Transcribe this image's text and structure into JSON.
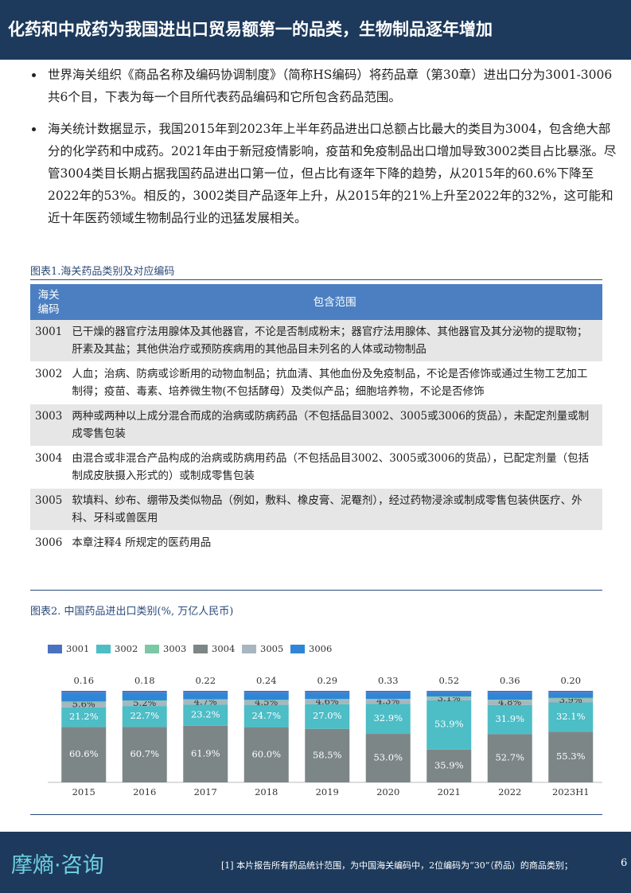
{
  "header": {
    "title": "化药和中成药为我国进出口贸易额第一的品类，生物制品逐年增加"
  },
  "bullets": [
    "世界海关组织《商品名称及编码协调制度》（简称HS编码）将药品章（第30章）进出口分为3001-3006共6个目，下表为每一个目所代表药品编码和它所包含药品范围。",
    "海关统计数据显示，我国2015年到2023年上半年药品进出口总额占比最大的类目为3004，包含绝大部分的化学药和中成药。2021年由于新冠疫情影响，疫苗和免疫制品出口增加导致3002类目占比暴涨。尽管3004类目长期占据我国药品进出口第一位，但占比有逐年下降的趋势，从2015年的60.6%下降至2022年的53%。相反的，3002类目产品逐年上升，从2015年的21%上升至2022年的32%，这可能和近十年医药领域生物制品行业的迅猛发展相关。"
  ],
  "table": {
    "caption": "图表1.海关药品类别及对应编码",
    "headers": [
      "海关编码",
      "包含范围"
    ],
    "rows": [
      [
        "3001",
        "已干燥的器官疗法用腺体及其他器官，不论是否制成粉末；器官疗法用腺体、其他器官及其分泌物的提取物；肝素及其盐；其他供治疗或预防疾病用的其他品目未列名的人体或动物制品"
      ],
      [
        "3002",
        "人血；治病、防病或诊断用的动物血制品；抗血清、其他血份及免疫制品，不论是否修饰或通过生物工艺加工制得；疫苗、毒素、培养微生物(不包括酵母）及类似产品；细胞培养物，不论是否修饰"
      ],
      [
        "3003",
        "两种或两种以上成分混合而成的治病或防病药品（不包括品目3002、3005或3006的货品），未配定剂量或制成零售包装"
      ],
      [
        "3004",
        "由混合或非混合产品构成的治病或防病用药品（不包括品目3002、3005或3006的货品），已配定剂量（包括制成皮肤摄入形式的）或制成零售包装"
      ],
      [
        "3005",
        "软填料、纱布、绷带及类似物品（例如，敷料、橡皮膏、泥罨剂），经过药物浸涂或制成零售包装供医疗、外科、牙科或兽医用"
      ],
      [
        "3006",
        "本章注释4 所规定的医药用品"
      ]
    ]
  },
  "chart_data": {
    "type": "stacked-bar",
    "title": "图表2. 中国药品进出口类别(%, 万亿人民币)",
    "categories": [
      "2015",
      "2016",
      "2017",
      "2018",
      "2019",
      "2020",
      "2021",
      "2022",
      "2023H1"
    ],
    "ylim": [
      0,
      100
    ],
    "series": [
      {
        "name": "3004",
        "color": "#7d8687",
        "label_color": "#ffffff",
        "values": [
          60.6,
          60.7,
          61.9,
          60.0,
          58.5,
          53.0,
          35.9,
          52.7,
          55.3
        ],
        "value_labels": [
          "60.6%",
          "60.7%",
          "61.9%",
          "60.0%",
          "58.5%",
          "53.0%",
          "35.9%",
          "52.7%",
          "55.3%"
        ]
      },
      {
        "name": "3002",
        "color": "#4dbdc6",
        "label_color": "#ffffff",
        "values": [
          21.2,
          22.7,
          23.2,
          24.7,
          27.0,
          32.9,
          53.9,
          31.9,
          32.1
        ],
        "value_labels": [
          "21.2%",
          "22.7%",
          "23.2%",
          "24.7%",
          "27.0%",
          "32.9%",
          "53.9%",
          "31.9%",
          "32.1%"
        ]
      },
      {
        "name": "3005",
        "color": "#a7b6c0",
        "label_color": "#333333",
        "values": [
          5.6,
          5.2,
          4.7,
          4.5,
          4.6,
          4.3,
          3.1,
          4.8,
          3.9
        ],
        "value_labels": [
          "5.6%",
          "5.2%",
          "4.7%",
          "4.5%",
          "4.6%",
          "4.3%",
          "3.1%",
          "4.8%",
          "3.9%"
        ]
      },
      {
        "name": "3003",
        "color": "#7cc8a4",
        "values": [
          1,
          1,
          1,
          1,
          1,
          1,
          1,
          1,
          1
        ]
      },
      {
        "name": "3006",
        "color": "#2f86d6",
        "values": [
          9.6,
          8.4,
          7.2,
          7.8,
          6.9,
          6.8,
          4.6,
          7.6,
          5.7
        ]
      },
      {
        "name": "3001",
        "color": "#4a72c0",
        "values": [
          2,
          2,
          2,
          2,
          2,
          2,
          1.5,
          2,
          2
        ]
      }
    ],
    "legend_order": [
      5,
      1,
      3,
      0,
      2,
      4
    ],
    "totals": {
      "values": [
        0.16,
        0.18,
        0.22,
        0.24,
        0.29,
        0.33,
        0.52,
        0.36,
        0.2
      ],
      "value_labels": [
        "0.16",
        "0.18",
        "0.22",
        "0.24",
        "0.29",
        "0.33",
        "0.52",
        "0.36",
        "0.20"
      ]
    }
  },
  "footer": {
    "logo": "摩熵·咨询",
    "note": "[1] 本片报告所有药品统计范围，为中国海关编码中，2位编码为“30”（药品）的商品类别；",
    "page": "6"
  }
}
